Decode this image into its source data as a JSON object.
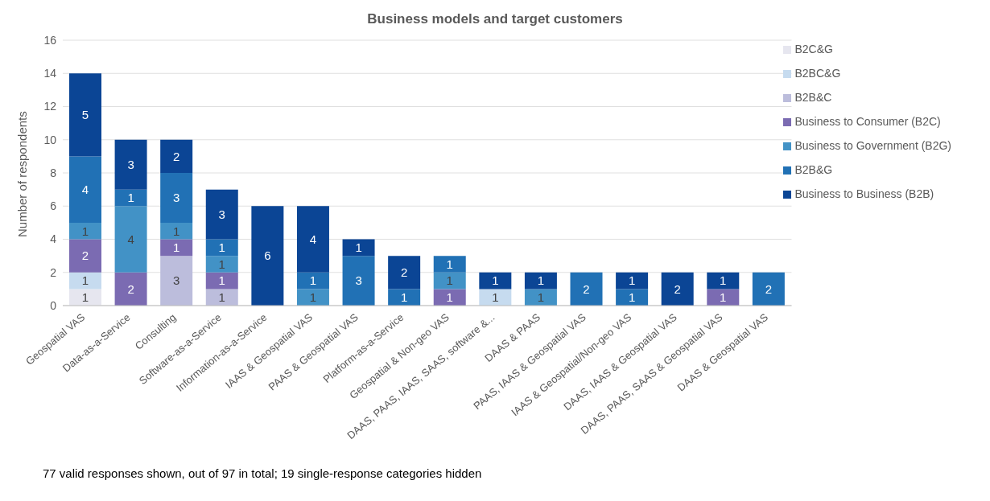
{
  "chart_data": {
    "type": "bar",
    "title": "Business models and target customers",
    "ylabel": "Number of respondents",
    "categories": [
      "Geospatial VAS",
      "Data-as-a-Service",
      "Consulting",
      "Software-as-a-Service",
      "Information-as-a-Service",
      "IAAS & Geospatial VAS",
      "PAAS & Geospatial VAS",
      "Platform-as-a-Service",
      "Geospatial & Non-geo VAS",
      "DAAS, PAAS, IAAS, SAAS, software &...",
      "DAAS & PAAS",
      "PAAS, IAAS & Geospatial VAS",
      "IAAS & Geospatial/Non-geo VAS",
      "DAAS, IAAS & Geospatial VAS",
      "DAAS, PAAS, SAAS & Geospatial VAS",
      "DAAS & Geospatial VAS"
    ],
    "stacked": true,
    "data_labels": true,
    "grid": "y",
    "legend": "top right",
    "ylim": [
      0,
      16
    ],
    "yticks": [
      0,
      2,
      4,
      6,
      8,
      10,
      12,
      14,
      16
    ],
    "series": [
      {
        "name": "B2C&G",
        "color": "#e6e6ef",
        "values": [
          1,
          null,
          null,
          null,
          null,
          null,
          null,
          null,
          null,
          null,
          null,
          null,
          null,
          null,
          null,
          null
        ]
      },
      {
        "name": "B2BC&G",
        "color": "#c6dbef",
        "values": [
          1,
          null,
          null,
          null,
          null,
          null,
          null,
          null,
          null,
          1,
          null,
          null,
          null,
          null,
          null,
          null
        ]
      },
      {
        "name": "B2B&C",
        "color": "#bcbddc",
        "values": [
          null,
          null,
          3,
          1,
          null,
          null,
          null,
          null,
          null,
          null,
          null,
          null,
          null,
          null,
          null,
          null
        ]
      },
      {
        "name": "Business to Consumer (B2C)",
        "color": "#7b6bb2",
        "values": [
          2,
          2,
          1,
          1,
          null,
          null,
          null,
          null,
          1,
          null,
          null,
          null,
          null,
          null,
          1,
          null
        ]
      },
      {
        "name": "Business to Government (B2G)",
        "color": "#4292c6",
        "values": [
          1,
          4,
          1,
          1,
          null,
          1,
          null,
          null,
          1,
          null,
          1,
          null,
          null,
          null,
          null,
          null
        ]
      },
      {
        "name": "B2B&G",
        "color": "#2171b5",
        "values": [
          4,
          1,
          3,
          1,
          null,
          1,
          3,
          1,
          1,
          null,
          null,
          2,
          1,
          null,
          null,
          2
        ]
      },
      {
        "name": "Business to Business (B2B)",
        "color": "#0b4595",
        "values": [
          5,
          3,
          2,
          3,
          6,
          4,
          1,
          2,
          null,
          1,
          1,
          null,
          1,
          2,
          1,
          null
        ]
      }
    ],
    "annotations": [
      "77 valid responses shown, out of 97 in total; 19 single-response categories hidden"
    ]
  }
}
